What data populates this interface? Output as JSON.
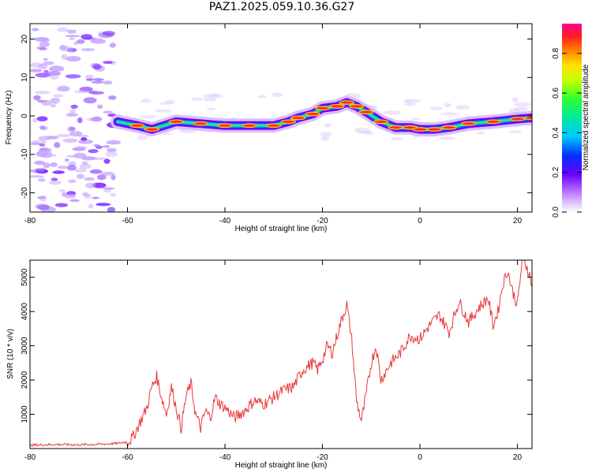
{
  "title": "PAZ1.2025.059.10.36.G27",
  "colors": {
    "snr_line": "#e8383a",
    "ridge_core": "#ff3030",
    "ridge_edge": "#7a00ff",
    "noise": "#c9a6ff"
  },
  "chart_data": [
    {
      "type": "heatmap",
      "xlabel": "Height of straight line (km)",
      "ylabel": "Frequency (Hz)",
      "xlim": [
        -80,
        23
      ],
      "ylim": [
        -25,
        24
      ],
      "xticks": [
        -80,
        -60,
        -40,
        -20,
        0,
        20
      ],
      "yticks": [
        -20,
        -10,
        0,
        10,
        20
      ],
      "colorbar": {
        "label": "Normalized spectral amplitude",
        "range": [
          0,
          0.95
        ],
        "ticks": [
          "0.0",
          "0.2",
          "0.4",
          "0.6",
          "0.8"
        ]
      },
      "ridge": {
        "x": [
          -62,
          -58,
          -55,
          -50,
          -45,
          -40,
          -35,
          -30,
          -27,
          -25,
          -22,
          -20,
          -17,
          -15,
          -13,
          -11,
          -8,
          -5,
          -2,
          0,
          3,
          6,
          10,
          15,
          20,
          23
        ],
        "y": [
          -1.5,
          -2.5,
          -3.5,
          -1.5,
          -2.0,
          -2.5,
          -2.5,
          -2.5,
          -1.5,
          -0.5,
          0.5,
          2.0,
          2.5,
          3.5,
          2.5,
          1.0,
          -1.5,
          -3.0,
          -3.0,
          -3.5,
          -3.5,
          -3.0,
          -2.0,
          -1.5,
          -0.8,
          -0.5
        ]
      }
    },
    {
      "type": "line",
      "xlabel": "Height of straight line (km)",
      "ylabel": "SNR (10 * v/v)",
      "xlim": [
        -80,
        23
      ],
      "ylim": [
        0,
        5500
      ],
      "xticks": [
        -80,
        -60,
        -40,
        -20,
        0,
        20
      ],
      "yticks": [
        1000,
        2000,
        3000,
        4000,
        5000
      ],
      "series": [
        {
          "x": [
            -80,
            -75,
            -70,
            -65,
            -62,
            -60,
            -59,
            -58,
            -57,
            -56,
            -55,
            -54,
            -53,
            -52,
            -51,
            -50,
            -49,
            -48,
            -47,
            -46,
            -45,
            -44,
            -43,
            -42,
            -41,
            -40,
            -38,
            -36,
            -34,
            -32,
            -30,
            -28,
            -26,
            -24,
            -22,
            -21,
            -20,
            -19,
            -18,
            -17,
            -16,
            -15,
            -14,
            -13,
            -12,
            -11,
            -10,
            -9,
            -8,
            -6,
            -4,
            -2,
            0,
            2,
            4,
            6,
            8,
            10,
            12,
            14,
            15,
            16,
            17,
            18,
            19,
            20,
            21,
            22,
            23
          ],
          "y": [
            100,
            120,
            110,
            130,
            150,
            200,
            300,
            600,
            900,
            1200,
            1800,
            2100,
            1500,
            1000,
            1800,
            1200,
            600,
            1500,
            1900,
            1000,
            600,
            1100,
            900,
            1500,
            1300,
            1200,
            900,
            1100,
            1400,
            1300,
            1500,
            1700,
            1800,
            2300,
            2500,
            2300,
            2600,
            3000,
            2800,
            3300,
            3800,
            4200,
            3200,
            1400,
            800,
            1600,
            2500,
            3000,
            2000,
            2500,
            2800,
            3300,
            3200,
            3600,
            3900,
            3400,
            4300,
            3700,
            4100,
            4400,
            3600,
            4000,
            4800,
            5200,
            4600,
            4200,
            5500,
            5300,
            4800
          ]
        }
      ]
    }
  ]
}
